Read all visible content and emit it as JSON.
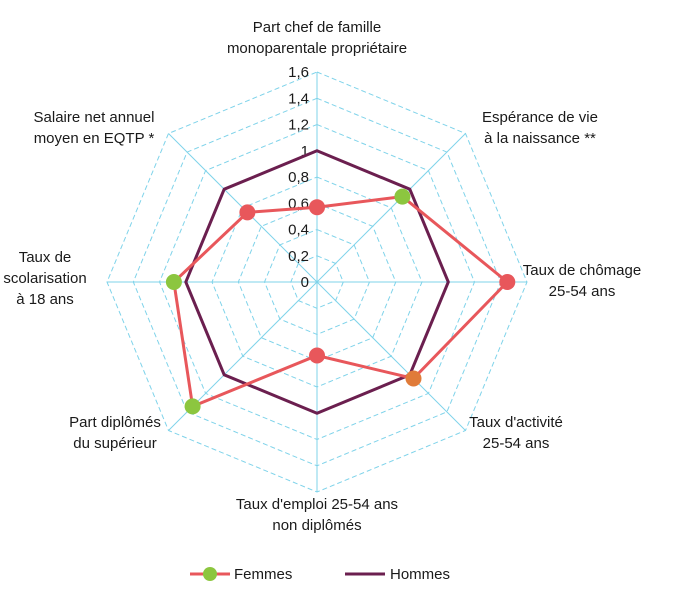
{
  "chart_data": {
    "type": "radar",
    "axes": [
      {
        "label_lines": [
          "Part chef de famille",
          "monoparentale propriétaire"
        ]
      },
      {
        "label_lines": [
          "Espérance de vie",
          "à la naissance **"
        ]
      },
      {
        "label_lines": [
          "Taux de chômage",
          "25-54 ans"
        ]
      },
      {
        "label_lines": [
          "Taux d'activité",
          "25-54 ans"
        ]
      },
      {
        "label_lines": [
          "Taux d'emploi 25-54 ans",
          "non diplômés"
        ]
      },
      {
        "label_lines": [
          "Part diplômés",
          "du supérieur"
        ]
      },
      {
        "label_lines": [
          "Taux de",
          "scolarisation",
          "à 18 ans"
        ]
      },
      {
        "label_lines": [
          "Salaire net annuel",
          "moyen en EQTP *"
        ]
      }
    ],
    "r_ticks": [
      "0",
      "0,2",
      "0,4",
      "0,6",
      "0,8",
      "1",
      "1,2",
      "1,4",
      "1,6"
    ],
    "r_range": [
      0,
      1.6
    ],
    "grid": true,
    "legend_position": "bottom",
    "series": [
      {
        "name": "Femmes",
        "line_color": "#e8575b",
        "values": [
          0.57,
          0.92,
          1.45,
          1.04,
          0.56,
          1.34,
          1.09,
          0.75
        ],
        "marker_colors": [
          "#e8575b",
          "#8cc63f",
          "#e8575b",
          "#e07b39",
          "#e8575b",
          "#8cc63f",
          "#8cc63f",
          "#e8575b"
        ]
      },
      {
        "name": "Hommes",
        "line_color": "#6b1f4f",
        "values": [
          1,
          1,
          1,
          1,
          1,
          1,
          1,
          1
        ]
      }
    ],
    "legend_marker_color": "#8cc63f"
  }
}
